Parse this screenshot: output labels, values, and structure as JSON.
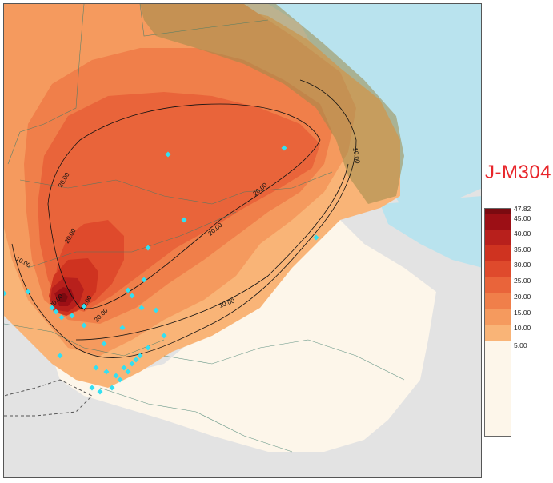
{
  "title": "J-M304",
  "legend": {
    "labels": [
      "47.82",
      "45.00",
      "40.00",
      "35.00",
      "30.00",
      "25.00",
      "20.00",
      "15.00",
      "10.00",
      "5.00"
    ],
    "colors": [
      "#7a0a10",
      "#9c0f15",
      "#b8201c",
      "#cf3320",
      "#df4a2c",
      "#e9643a",
      "#f07f4a",
      "#f59a5e",
      "#f9b477",
      "#fdf6ea"
    ]
  },
  "contour_labels": [
    "10.00",
    "20.00",
    "20.00",
    "20.00",
    "20.00",
    "10.00",
    "10.00",
    "10.00",
    "20.00",
    "20.00"
  ],
  "colors": {
    "sea": "#b9e3ee",
    "land_outside": "#e3e3e3",
    "lowest_band": "#fdf6ea",
    "gridlines": "#3a7a6a",
    "sample_points": "#33e0f2"
  }
}
